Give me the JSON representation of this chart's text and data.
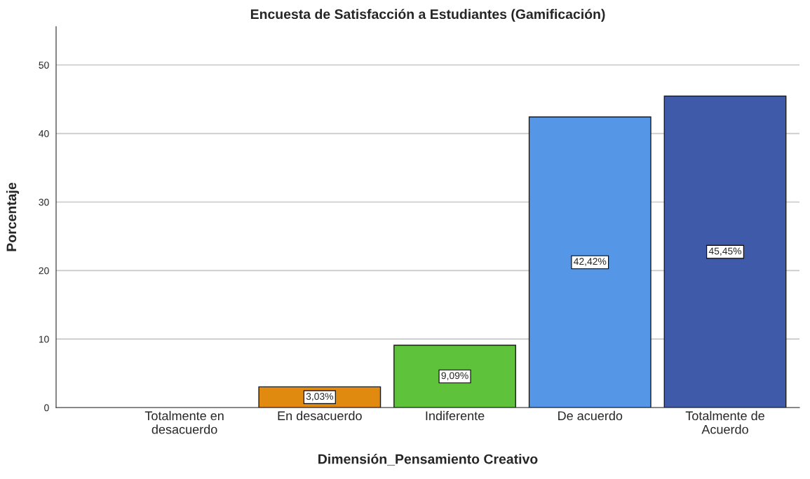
{
  "chart_data": {
    "type": "bar",
    "title": "Encuesta de Satisfacción a Estudiantes (Gamificación)",
    "xlabel": "Dimensión_Pensamiento Creativo",
    "ylabel": "Porcentaje",
    "categories": [
      "Totalmente en\ndesacuerdo",
      "En desacuerdo",
      "Indiferente",
      "De acuerdo",
      "Totalmente de\nAcuerdo"
    ],
    "values": [
      null,
      3.03,
      9.09,
      42.42,
      45.45
    ],
    "colors": [
      "#e08a10",
      "#e08a10",
      "#5ec23a",
      "#5596e6",
      "#3f5aa8"
    ],
    "value_labels": [
      null,
      "3,03%",
      "9,09%",
      "42,42%",
      "45,45%"
    ],
    "ylim": [
      0,
      55.6
    ],
    "yticks": [
      0,
      10,
      20,
      30,
      40,
      50
    ],
    "grid": "y"
  }
}
